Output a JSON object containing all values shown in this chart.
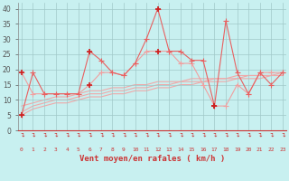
{
  "xlabel": "Vent moyen/en rafales ( km/h )",
  "bg_color": "#c8f0f0",
  "grid_color": "#a0c8c8",
  "x_values": [
    0,
    1,
    2,
    3,
    4,
    5,
    6,
    7,
    8,
    9,
    10,
    11,
    12,
    13,
    14,
    15,
    16,
    17,
    18,
    19,
    20,
    21,
    22,
    23
  ],
  "series1": [
    5,
    19,
    12,
    12,
    12,
    12,
    26,
    23,
    19,
    18,
    22,
    30,
    40,
    26,
    26,
    23,
    23,
    8,
    36,
    19,
    12,
    19,
    15,
    19
  ],
  "series2": [
    19,
    12,
    12,
    12,
    12,
    12,
    15,
    19,
    19,
    18,
    22,
    26,
    26,
    26,
    22,
    22,
    15,
    8,
    8,
    15,
    12,
    19,
    19,
    19
  ],
  "line1_color": "#e86060",
  "line2_color": "#f0a0a0",
  "dark_marker_color": "#cc2222",
  "trend_color": "#f0a8a8",
  "trend1": [
    5,
    7,
    8,
    9,
    9,
    10,
    11,
    11,
    12,
    12,
    13,
    13,
    14,
    14,
    15,
    15,
    16,
    16,
    16,
    17,
    17,
    17,
    18,
    18
  ],
  "trend2": [
    6,
    8,
    9,
    10,
    10,
    11,
    12,
    12,
    13,
    13,
    14,
    14,
    15,
    15,
    16,
    16,
    16,
    17,
    17,
    17,
    18,
    18,
    18,
    18
  ],
  "trend3": [
    8,
    9,
    10,
    11,
    11,
    12,
    13,
    13,
    14,
    14,
    15,
    15,
    16,
    16,
    16,
    17,
    17,
    17,
    17,
    18,
    18,
    18,
    18,
    19
  ],
  "ylim": [
    0,
    42
  ],
  "yticks": [
    0,
    5,
    10,
    15,
    20,
    25,
    30,
    35,
    40
  ],
  "dark_markers_s1": [
    0,
    6,
    12,
    17
  ],
  "dark_markers_s2": [
    0,
    6,
    12,
    17
  ],
  "line_width": 0.8,
  "marker_size": 4
}
